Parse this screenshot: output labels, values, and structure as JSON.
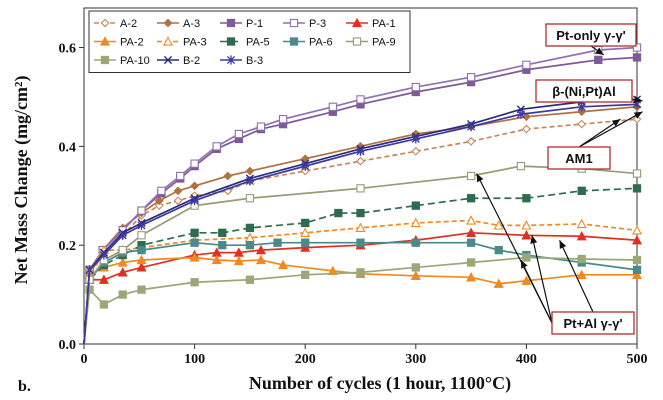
{
  "panel_label": "b.",
  "chart_data": {
    "type": "line",
    "xlabel": "Number of cycles (1 hour, 1100°C)",
    "ylabel": "Net Mass Change (mg/cm²)",
    "xlim": [
      0,
      500
    ],
    "ylim": [
      0,
      0.68
    ],
    "xticks": [
      0,
      100,
      200,
      300,
      400,
      500
    ],
    "yticks": [
      0.0,
      0.2,
      0.4,
      0.6
    ],
    "xtick_labels": [
      "0",
      "100",
      "200",
      "300",
      "400",
      "500"
    ],
    "ytick_labels": [
      "0.0",
      "0.2",
      "0.4",
      "0.6"
    ],
    "grid": false,
    "legend_position": "top-left, inside plot, 5 columns",
    "series": [
      {
        "name": "A-2",
        "color": "#c8875a",
        "dash": "5,3",
        "marker": "diamond-open",
        "x": [
          0,
          5,
          17,
          35,
          52,
          68,
          85,
          100,
          130,
          150,
          200,
          250,
          300,
          350,
          400,
          450,
          500
        ],
        "y": [
          0,
          0.14,
          0.18,
          0.22,
          0.26,
          0.28,
          0.29,
          0.3,
          0.31,
          0.33,
          0.35,
          0.37,
          0.39,
          0.41,
          0.435,
          0.445,
          0.455
        ]
      },
      {
        "name": "A-3",
        "color": "#b07040",
        "dash": "",
        "marker": "diamond",
        "x": [
          0,
          5,
          17,
          35,
          52,
          68,
          85,
          100,
          130,
          150,
          200,
          250,
          300,
          350,
          400,
          450,
          500
        ],
        "y": [
          0,
          0.14,
          0.19,
          0.235,
          0.265,
          0.29,
          0.31,
          0.32,
          0.34,
          0.35,
          0.375,
          0.4,
          0.425,
          0.44,
          0.46,
          0.47,
          0.48
        ]
      },
      {
        "name": "P-1",
        "color": "#7f5a9a",
        "dash": "",
        "marker": "square",
        "x": [
          0,
          5,
          17,
          35,
          52,
          70,
          87,
          100,
          120,
          140,
          160,
          180,
          225,
          250,
          300,
          350,
          400,
          465,
          500
        ],
        "y": [
          0,
          0.15,
          0.19,
          0.23,
          0.27,
          0.305,
          0.335,
          0.36,
          0.395,
          0.415,
          0.435,
          0.445,
          0.47,
          0.485,
          0.51,
          0.53,
          0.555,
          0.575,
          0.58
        ]
      },
      {
        "name": "P-3",
        "color": "#9070b0",
        "dash": "",
        "marker": "square-open",
        "x": [
          0,
          5,
          17,
          35,
          52,
          70,
          87,
          100,
          120,
          140,
          160,
          180,
          225,
          250,
          300,
          350,
          400,
          465,
          500
        ],
        "y": [
          0,
          0.15,
          0.19,
          0.23,
          0.27,
          0.31,
          0.34,
          0.365,
          0.4,
          0.425,
          0.44,
          0.455,
          0.48,
          0.495,
          0.52,
          0.54,
          0.565,
          0.595,
          0.6
        ]
      },
      {
        "name": "PA-1",
        "color": "#e03020",
        "dash": "",
        "marker": "triangle",
        "x": [
          0,
          5,
          18,
          35,
          52,
          100,
          120,
          140,
          160,
          200,
          250,
          300,
          350,
          400,
          450,
          500
        ],
        "y": [
          0,
          0.13,
          0.13,
          0.145,
          0.155,
          0.18,
          0.185,
          0.185,
          0.19,
          0.195,
          0.2,
          0.21,
          0.225,
          0.22,
          0.218,
          0.21
        ]
      },
      {
        "name": "PA-2",
        "color": "#f08a20",
        "dash": "",
        "marker": "triangle",
        "x": [
          0,
          5,
          18,
          35,
          52,
          100,
          120,
          140,
          160,
          180,
          225,
          250,
          300,
          350,
          375,
          400,
          450,
          500
        ],
        "y": [
          0,
          0.14,
          0.155,
          0.165,
          0.17,
          0.175,
          0.17,
          0.168,
          0.17,
          0.16,
          0.148,
          0.142,
          0.138,
          0.135,
          0.122,
          0.128,
          0.14,
          0.14
        ]
      },
      {
        "name": "PA-3",
        "color": "#f08a20",
        "dash": "5,3",
        "marker": "triangle-open",
        "x": [
          0,
          5,
          18,
          35,
          52,
          100,
          150,
          200,
          250,
          300,
          350,
          375,
          400,
          450,
          500
        ],
        "y": [
          0,
          0.15,
          0.19,
          0.19,
          0.195,
          0.21,
          0.215,
          0.225,
          0.235,
          0.245,
          0.25,
          0.24,
          0.24,
          0.243,
          0.23
        ]
      },
      {
        "name": "PA-5",
        "color": "#2e6b4f",
        "dash": "7,4",
        "marker": "square",
        "x": [
          0,
          5,
          18,
          35,
          52,
          100,
          125,
          150,
          200,
          230,
          250,
          300,
          350,
          400,
          450,
          500
        ],
        "y": [
          0,
          0.13,
          0.16,
          0.18,
          0.2,
          0.225,
          0.225,
          0.235,
          0.245,
          0.265,
          0.265,
          0.28,
          0.295,
          0.295,
          0.31,
          0.315
        ]
      },
      {
        "name": "PA-6",
        "color": "#4a8a8a",
        "dash": "",
        "marker": "square",
        "x": [
          0,
          5,
          18,
          35,
          52,
          100,
          125,
          150,
          175,
          200,
          250,
          300,
          350,
          375,
          400,
          450,
          500
        ],
        "y": [
          0,
          0.13,
          0.165,
          0.185,
          0.19,
          0.205,
          0.2,
          0.2,
          0.205,
          0.205,
          0.205,
          0.205,
          0.205,
          0.19,
          0.18,
          0.165,
          0.15
        ]
      },
      {
        "name": "PA-9",
        "color": "#9a9a78",
        "dash": "",
        "marker": "square-open",
        "x": [
          0,
          5,
          18,
          35,
          52,
          100,
          150,
          250,
          350,
          395,
          450,
          500
        ],
        "y": [
          0,
          0.13,
          0.17,
          0.19,
          0.22,
          0.28,
          0.295,
          0.315,
          0.34,
          0.36,
          0.355,
          0.345
        ]
      },
      {
        "name": "PA-10",
        "color": "#9aa878",
        "dash": "",
        "marker": "square",
        "x": [
          0,
          5,
          18,
          35,
          52,
          100,
          150,
          200,
          250,
          300,
          350,
          400,
          450,
          500
        ],
        "y": [
          0,
          0.11,
          0.08,
          0.1,
          0.11,
          0.125,
          0.13,
          0.14,
          0.145,
          0.155,
          0.165,
          0.175,
          0.172,
          0.17
        ]
      },
      {
        "name": "B-2",
        "color": "#2a2a80",
        "dash": "",
        "marker": "x",
        "x": [
          0,
          5,
          18,
          35,
          52,
          100,
          150,
          200,
          250,
          300,
          350,
          395,
          450,
          500
        ],
        "y": [
          0,
          0.15,
          0.185,
          0.225,
          0.245,
          0.295,
          0.335,
          0.365,
          0.395,
          0.42,
          0.445,
          0.475,
          0.49,
          0.495
        ]
      },
      {
        "name": "B-3",
        "color": "#3a3aa0",
        "dash": "",
        "marker": "star",
        "x": [
          0,
          5,
          18,
          35,
          52,
          100,
          150,
          200,
          250,
          300,
          350,
          395,
          450,
          500
        ],
        "y": [
          0,
          0.15,
          0.18,
          0.22,
          0.24,
          0.29,
          0.33,
          0.36,
          0.39,
          0.415,
          0.44,
          0.465,
          0.48,
          0.485
        ]
      }
    ],
    "annotations": [
      {
        "text": "Pt-only γ-γ'",
        "arrow_to": [
          [
            470,
            0.585
          ]
        ]
      },
      {
        "text": "β-(Ni,Pt)Al",
        "arrow_to": [
          [
            505,
            0.492
          ]
        ]
      },
      {
        "text": "AM1",
        "arrow_to": [
          [
            485,
            0.455
          ],
          [
            505,
            0.47
          ]
        ]
      },
      {
        "text": "Pt+Al γ-γ'",
        "arrow_to": [
          [
            355,
            0.345
          ],
          [
            405,
            0.22
          ],
          [
            395,
            0.17
          ],
          [
            430,
            0.21
          ]
        ]
      }
    ]
  }
}
